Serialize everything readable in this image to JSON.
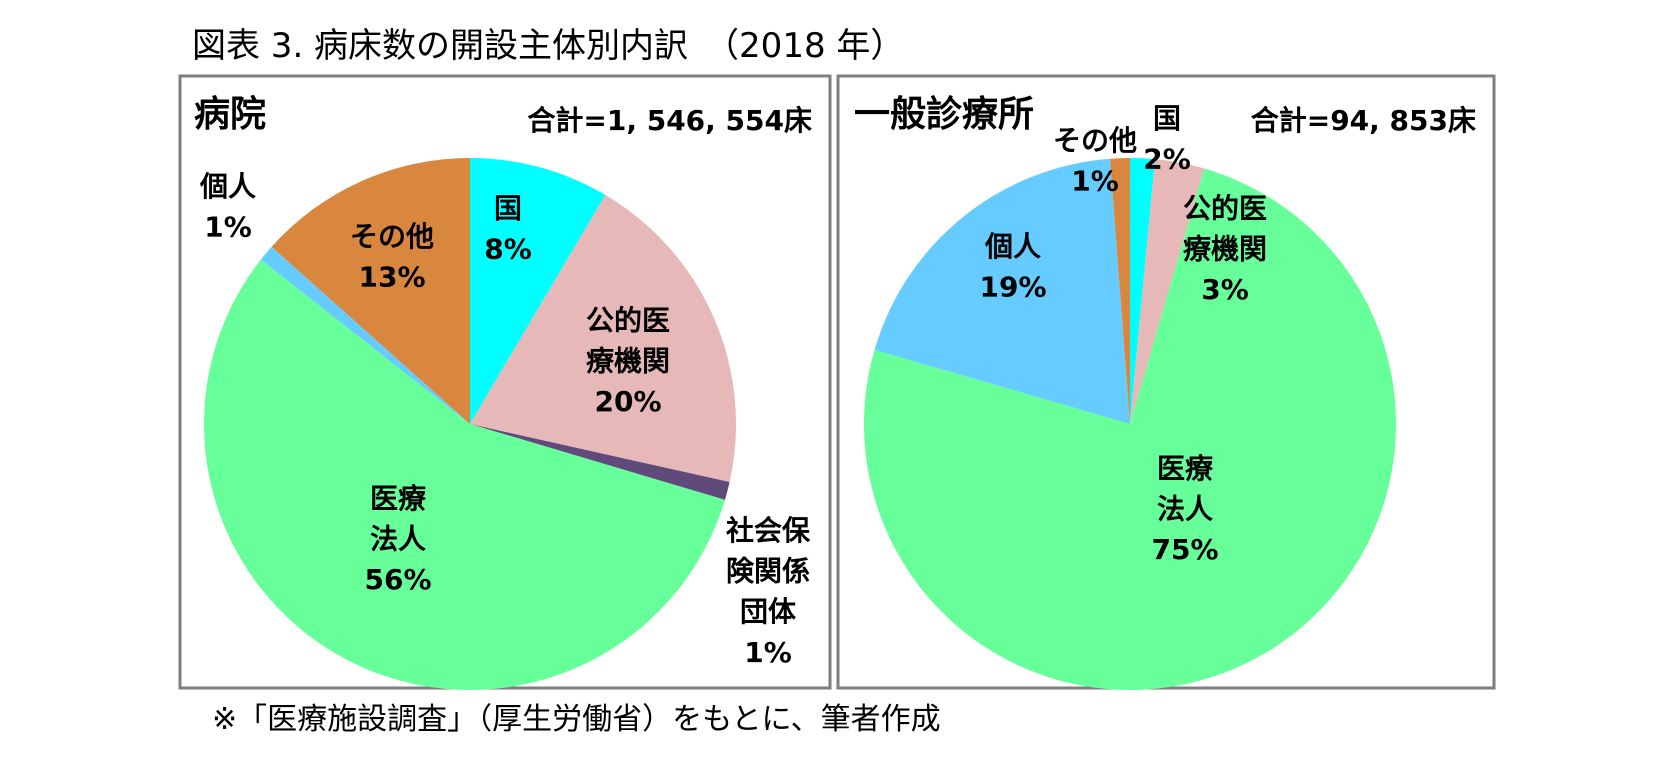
{
  "title": "図表 3.  病床数の開設主体別内訳　（2018 年）",
  "footnote": "※「医療施設調査」（厚生労働省）をもとに、筆者作成",
  "colors": {
    "国": "#00ffff",
    "公的医療機関": "#e6b8b7",
    "社会保険関係団体": "#604a7b",
    "医療法人": "#66ff99",
    "個人": "#66ccff",
    "その他": "#d9873f",
    "frame": "#7f7f7f"
  },
  "chart_data": [
    {
      "type": "pie",
      "title": "病院",
      "total_label": "合計=1, 546, 554床",
      "slices": [
        {
          "key": "国",
          "label_lines": [
            "国"
          ],
          "value_label": "8%",
          "value": 8.5
        },
        {
          "key": "公的医療機関",
          "label_lines": [
            "公的医",
            "療機関"
          ],
          "value_label": "20%",
          "value": 20.0
        },
        {
          "key": "社会保険関係団体",
          "label_lines": [
            "社会保",
            "険関係",
            "団体"
          ],
          "value_label": "1%",
          "value": 1.1
        },
        {
          "key": "医療法人",
          "label_lines": [
            "医療",
            "法人"
          ],
          "value_label": "56%",
          "value": 56.0
        },
        {
          "key": "個人",
          "label_lines": [
            "個人"
          ],
          "value_label": "1%",
          "value": 1.0
        },
        {
          "key": "その他",
          "label_lines": [
            "その他"
          ],
          "value_label": "13%",
          "value": 13.4
        }
      ]
    },
    {
      "type": "pie",
      "title": "一般診療所",
      "total_label": "合計=94, 853床",
      "slices": [
        {
          "key": "国",
          "label_lines": [
            "国"
          ],
          "value_label": "2%",
          "value": 1.5
        },
        {
          "key": "公的医療機関",
          "label_lines": [
            "公的医",
            "療機関"
          ],
          "value_label": "3%",
          "value": 3.0
        },
        {
          "key": "医療法人",
          "label_lines": [
            "医療",
            "法人"
          ],
          "value_label": "75%",
          "value": 75.0
        },
        {
          "key": "個人",
          "label_lines": [
            "個人"
          ],
          "value_label": "19%",
          "value": 19.3
        },
        {
          "key": "その他",
          "label_lines": [
            "その他"
          ],
          "value_label": "1%",
          "value": 1.2
        }
      ]
    }
  ]
}
